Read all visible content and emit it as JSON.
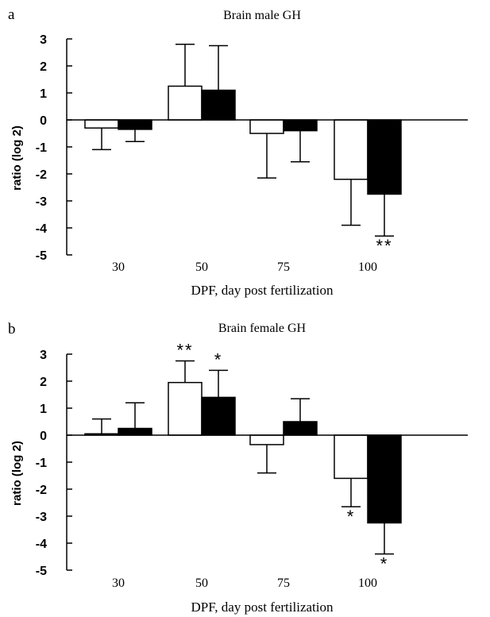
{
  "chart_data": [
    {
      "type": "bar",
      "panel": "a",
      "title": "Brain male GH",
      "xlabel": "DPF, day post fertilization",
      "ylabel": "ratio (log 2)",
      "categories": [
        "30",
        "50",
        "75",
        "100"
      ],
      "ylim": [
        -5,
        3
      ],
      "yticks": [
        "3",
        "2",
        "1",
        "0",
        "-1",
        "-2",
        "-3",
        "-4",
        "-5"
      ],
      "grid": false,
      "series": [
        {
          "color": "#ffffff",
          "values": [
            -0.3,
            1.25,
            -0.5,
            -2.2
          ],
          "errors": [
            0.8,
            1.55,
            1.65,
            1.7
          ],
          "annotations": [
            "",
            "",
            "",
            ""
          ]
        },
        {
          "color": "#000000",
          "values": [
            -0.35,
            1.1,
            -0.4,
            -2.75
          ],
          "errors": [
            0.45,
            1.65,
            1.15,
            1.55
          ],
          "annotations": [
            "",
            "",
            "",
            "**"
          ]
        }
      ]
    },
    {
      "type": "bar",
      "panel": "b",
      "title": "Brain female GH",
      "xlabel": "DPF, day post fertilization",
      "ylabel": "ratio (log 2)",
      "categories": [
        "30",
        "50",
        "75",
        "100"
      ],
      "ylim": [
        -5,
        3
      ],
      "yticks": [
        "3",
        "2",
        "1",
        "0",
        "-1",
        "-2",
        "-3",
        "-4",
        "-5"
      ],
      "grid": false,
      "series": [
        {
          "color": "#ffffff",
          "values": [
            0.05,
            1.95,
            -0.35,
            -1.6
          ],
          "errors": [
            0.55,
            0.8,
            1.05,
            1.05
          ],
          "annotations": [
            "",
            "**",
            "",
            "*"
          ]
        },
        {
          "color": "#000000",
          "values": [
            0.25,
            1.4,
            0.5,
            -3.25
          ],
          "errors": [
            0.95,
            1.0,
            0.85,
            1.15
          ],
          "annotations": [
            "",
            "*",
            "",
            "*"
          ]
        }
      ]
    }
  ]
}
